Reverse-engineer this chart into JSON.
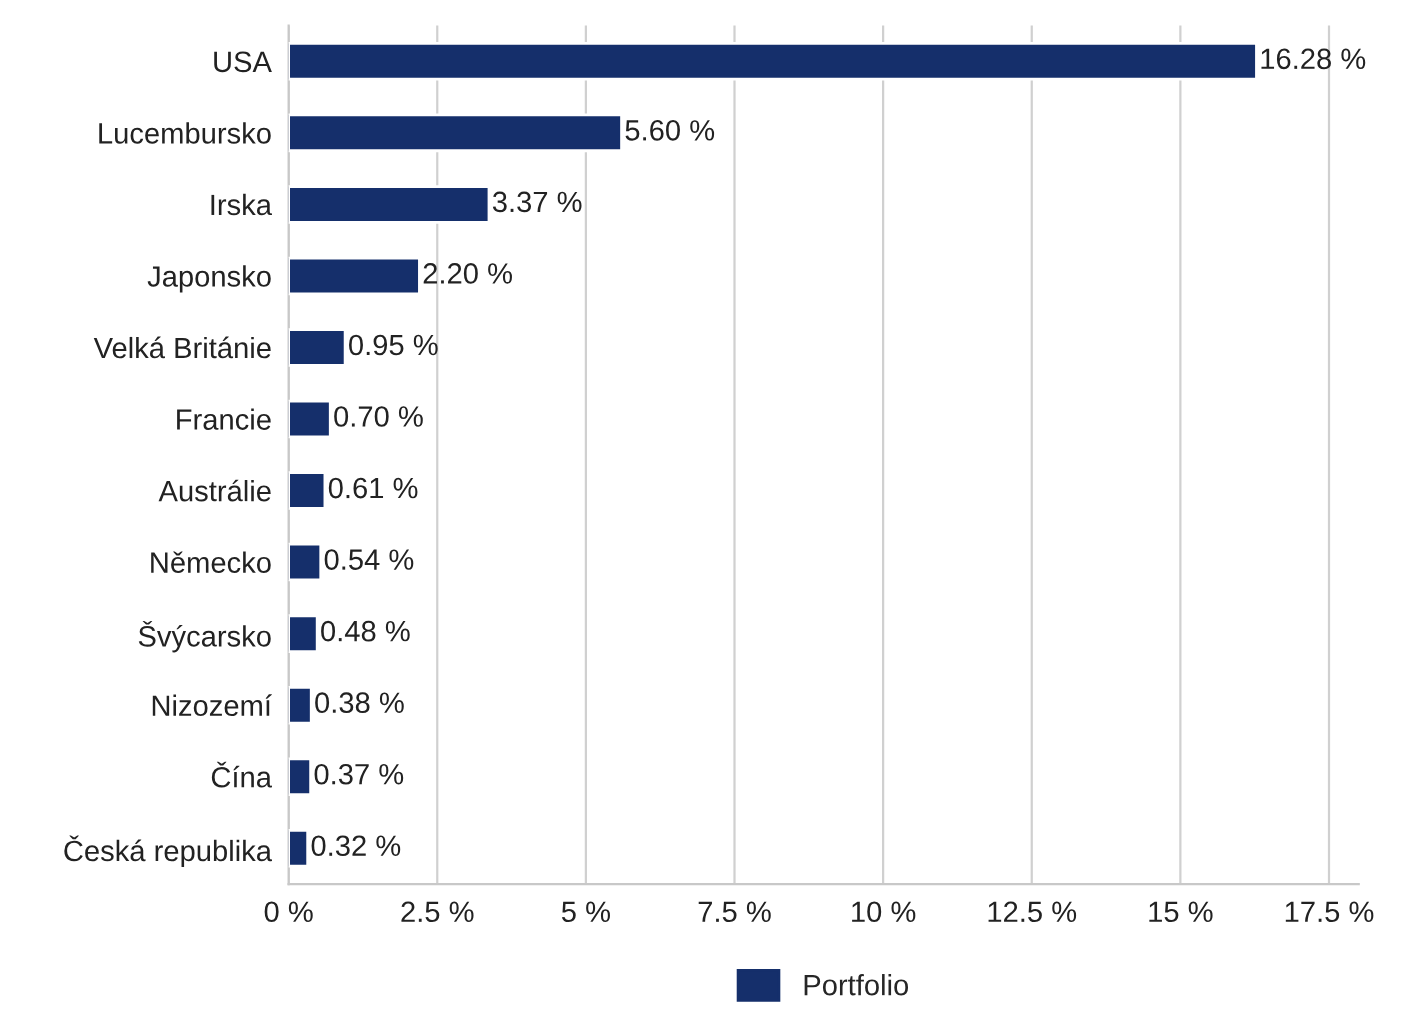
{
  "chart_data": {
    "type": "bar",
    "orientation": "horizontal",
    "categories": [
      "USA",
      "Lucembursko",
      "Irska",
      "Japonsko",
      "Velká Británie",
      "Francie",
      "Austrálie",
      "Německo",
      "Švýcarsko",
      "Nizozemí",
      "Čína",
      "Česká republika"
    ],
    "series": [
      {
        "name": "Portfolio",
        "color": "#152f6b",
        "values": [
          16.28,
          5.6,
          3.37,
          2.2,
          0.95,
          0.7,
          0.61,
          0.54,
          0.48,
          0.38,
          0.37,
          0.32
        ],
        "value_labels": [
          "16.28 %",
          "5.60 %",
          "3.37 %",
          "2.20 %",
          "0.95 %",
          "0.70 %",
          "0.61 %",
          "0.54 %",
          "0.48 %",
          "0.38 %",
          "0.37 %",
          "0.32 %"
        ]
      }
    ],
    "xlim": [
      0,
      18
    ],
    "xticks": [
      {
        "value": 0,
        "label": "0 %"
      },
      {
        "value": 2.5,
        "label": "2.5 %"
      },
      {
        "value": 5,
        "label": "5 %"
      },
      {
        "value": 7.5,
        "label": "7.5 %"
      },
      {
        "value": 10,
        "label": "10 %"
      },
      {
        "value": 12.5,
        "label": "12.5 %"
      },
      {
        "value": 15,
        "label": "15 %"
      },
      {
        "value": 17.5,
        "label": "17.5 %"
      }
    ],
    "grid": "x",
    "legend": "bottom"
  }
}
